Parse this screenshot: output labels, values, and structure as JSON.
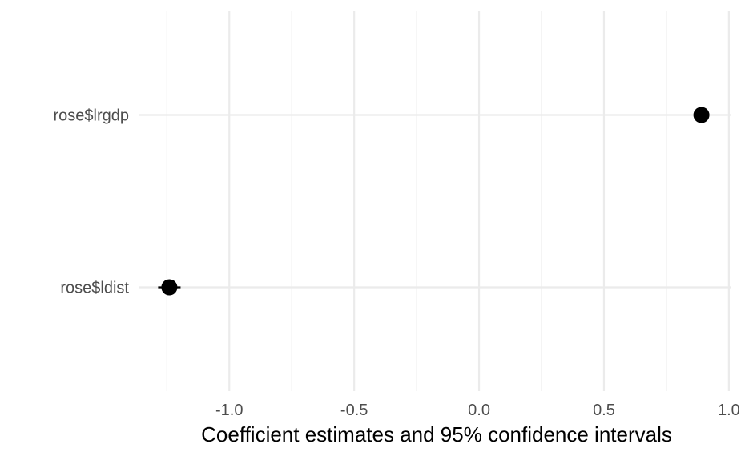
{
  "chart_data": {
    "type": "scatter",
    "subtype": "coefficient-plot",
    "title": "",
    "xlabel": "Coefficient estimates and 95% confidence intervals",
    "ylabel": "",
    "xlim": [
      -1.36,
      1.01
    ],
    "x_ticks": [
      -1.0,
      -0.5,
      0.0,
      0.5,
      1.0
    ],
    "x_tick_labels": [
      "-1.0",
      "-0.5",
      "0.0",
      "0.5",
      "1.0"
    ],
    "x_minor_ticks": [
      -1.25,
      -0.75,
      -0.25,
      0.25,
      0.75
    ],
    "categories": [
      "rose$lrgdp",
      "rose$ldist"
    ],
    "estimates": [
      0.89,
      -1.24
    ],
    "ci_lower": [
      0.87,
      -1.285
    ],
    "ci_upper": [
      0.91,
      -1.195
    ],
    "grid": true,
    "legend": "none",
    "colors": {
      "point": "#000000",
      "grid": "#ebebeb",
      "tick_text": "#4d4d4d",
      "axis_title": "#000000"
    }
  }
}
